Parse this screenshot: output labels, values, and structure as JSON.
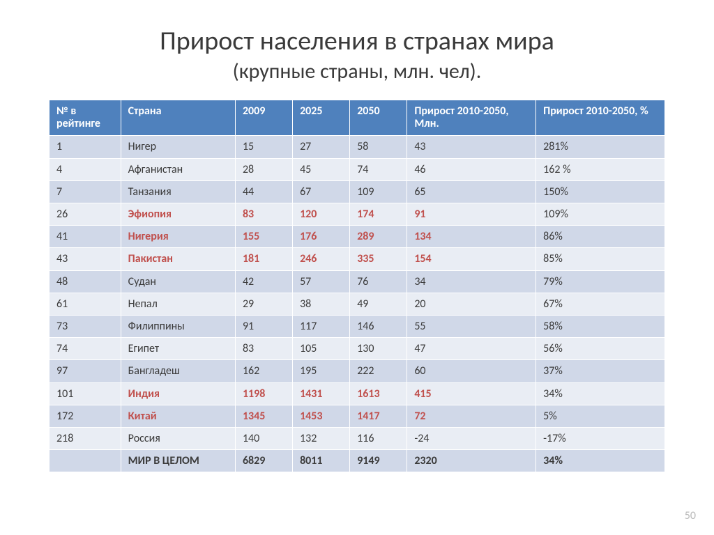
{
  "title": "Прирост населения в странах мира",
  "subtitle": "(крупные страны, млн. чел).",
  "page_number": "50",
  "table": {
    "header_bg": "#4f81bd",
    "header_fg": "#ffffff",
    "band_a_bg": "#d0d8e8",
    "band_b_bg": "#e9edf4",
    "highlight_color": "#c0504d",
    "columns": [
      "№ в рейтинге",
      "Страна",
      "2009",
      "2025",
      "2050",
      "Прирост 2010-2050, Млн.",
      "Прирост 2010-2050, %"
    ],
    "rows": [
      {
        "rank": "1",
        "country": "Нигер",
        "y2009": "15",
        "y2025": "27",
        "y2050": "58",
        "growth_mln": "43",
        "growth_pct": "281%",
        "highlight": false
      },
      {
        "rank": "4",
        "country": "Афганистан",
        "y2009": "28",
        "y2025": "45",
        "y2050": "74",
        "growth_mln": "46",
        "growth_pct": "162 %",
        "highlight": false
      },
      {
        "rank": "7",
        "country": "Танзания",
        "y2009": "44",
        "y2025": "67",
        "y2050": "109",
        "growth_mln": "65",
        "growth_pct": "150%",
        "highlight": false
      },
      {
        "rank": "26",
        "country": "Эфиопия",
        "y2009": "83",
        "y2025": "120",
        "y2050": "174",
        "growth_mln": "91",
        "growth_pct": "109%",
        "highlight": true
      },
      {
        "rank": "41",
        "country": "Нигерия",
        "y2009": "155",
        "y2025": "176",
        "y2050": "289",
        "growth_mln": "134",
        "growth_pct": "86%",
        "highlight": true
      },
      {
        "rank": "43",
        "country": "Пакистан",
        "y2009": "181",
        "y2025": "246",
        "y2050": "335",
        "growth_mln": "154",
        "growth_pct": "85%",
        "highlight": true
      },
      {
        "rank": "48",
        "country": "Судан",
        "y2009": "42",
        "y2025": "57",
        "y2050": "76",
        "growth_mln": "34",
        "growth_pct": "79%",
        "highlight": false
      },
      {
        "rank": "61",
        "country": "Непал",
        "y2009": "29",
        "y2025": "38",
        "y2050": "49",
        "growth_mln": "20",
        "growth_pct": "67%",
        "highlight": false
      },
      {
        "rank": "73",
        "country": "Филиппины",
        "y2009": "91",
        "y2025": "117",
        "y2050": "146",
        "growth_mln": "55",
        "growth_pct": "58%",
        "highlight": false
      },
      {
        "rank": "74",
        "country": "Египет",
        "y2009": "83",
        "y2025": "105",
        "y2050": "130",
        "growth_mln": "47",
        "growth_pct": "56%",
        "highlight": false
      },
      {
        "rank": "97",
        "country": "Бангладеш",
        "y2009": "162",
        "y2025": "195",
        "y2050": "222",
        "growth_mln": "60",
        "growth_pct": "37%",
        "highlight": false
      },
      {
        "rank": "101",
        "country": "Индия",
        "y2009": "1198",
        "y2025": "1431",
        "y2050": "1613",
        "growth_mln": "415",
        "growth_pct": "34%",
        "highlight": true
      },
      {
        "rank": "172",
        "country": "Китай",
        "y2009": "1345",
        "y2025": "1453",
        "y2050": "1417",
        "growth_mln": "72",
        "growth_pct": "5%",
        "highlight": true
      },
      {
        "rank": "218",
        "country": "Россия",
        "y2009": "140",
        "y2025": "132",
        "y2050": "116",
        "growth_mln": "-24",
        "growth_pct": "-17%",
        "highlight": false
      }
    ],
    "total": {
      "rank": "",
      "country": "МИР В ЦЕЛОМ",
      "y2009": "6829",
      "y2025": "8011",
      "y2050": "9149",
      "growth_mln": "2320",
      "growth_pct": "34%"
    }
  }
}
